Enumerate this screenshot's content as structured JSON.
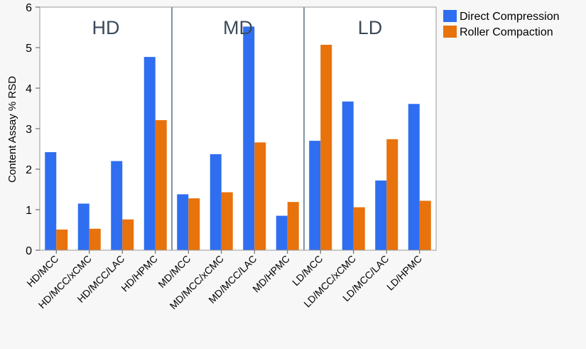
{
  "chart_data": {
    "type": "bar",
    "ylabel": "Content Assay % RSD",
    "ylim": [
      0,
      6
    ],
    "yticks": [
      0,
      1,
      2,
      3,
      4,
      5,
      6
    ],
    "grid": false,
    "legend_position": "top-right",
    "groups": [
      {
        "label": "HD",
        "categories": [
          "HD/MCC",
          "HD/MCC/xCMC",
          "HD/MCC/LAC",
          "HD/HPMC"
        ]
      },
      {
        "label": "MD",
        "categories": [
          "MD/MCC",
          "MD/MCC/xCMC",
          "MD/MCC/LAC",
          "MD/HPMC"
        ]
      },
      {
        "label": "LD",
        "categories": [
          "LD/MCC",
          "LD/MCC/xCMC",
          "LD/MCC/LAC",
          "LD/HPMC"
        ]
      }
    ],
    "categories": [
      "HD/MCC",
      "HD/MCC/xCMC",
      "HD/MCC/LAC",
      "HD/HPMC",
      "MD/MCC",
      "MD/MCC/xCMC",
      "MD/MCC/LAC",
      "MD/HPMC",
      "LD/MCC",
      "LD/MCC/xCMC",
      "LD/MCC/LAC",
      "LD/HPMC"
    ],
    "series": [
      {
        "name": "Direct Compression",
        "color": "#2f6ef0",
        "values": [
          2.42,
          1.15,
          2.2,
          4.77,
          1.38,
          2.37,
          5.52,
          0.85,
          2.7,
          3.67,
          1.72,
          3.61
        ]
      },
      {
        "name": "Roller Compaction",
        "color": "#e8720c",
        "values": [
          0.51,
          0.53,
          0.76,
          3.21,
          1.28,
          1.43,
          2.66,
          1.19,
          5.07,
          1.06,
          2.74,
          1.22
        ]
      }
    ]
  }
}
